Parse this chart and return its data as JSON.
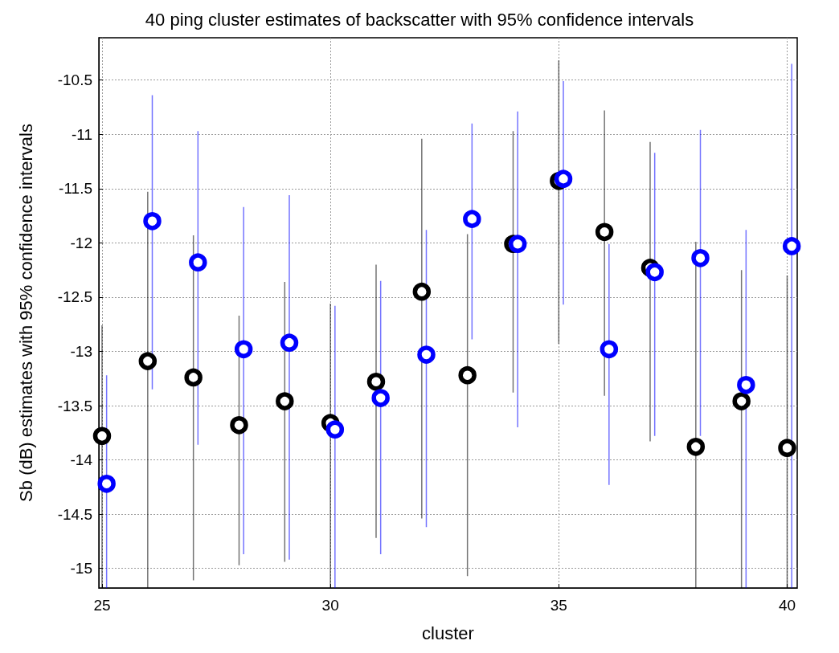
{
  "chart_data": {
    "type": "scatter",
    "title": "40 ping cluster estimates of backscatter with 95% confidence intervals",
    "xlabel": "cluster",
    "ylabel": "Sb (dB) estimates with 95% confidence intervals",
    "xlim": [
      24.93,
      40.22
    ],
    "xticks": [
      25,
      30,
      35,
      40
    ],
    "ylim": [
      -15.18,
      -10.11
    ],
    "yticks": [
      -15,
      -14.5,
      -14,
      -13.5,
      -13,
      -12.5,
      -12,
      -11.5,
      -11,
      -10.5
    ],
    "grid": true,
    "marker": "circle",
    "legend": false,
    "series": [
      {
        "color": "#000000",
        "x": [
          25,
          26,
          27,
          28,
          29,
          30,
          31,
          32,
          33,
          34,
          35,
          36,
          37,
          38,
          39,
          40
        ],
        "values": [
          -13.78,
          -13.09,
          -13.24,
          -13.68,
          -13.46,
          -13.66,
          -13.28,
          -12.45,
          -13.22,
          -12.01,
          -11.43,
          -11.9,
          -12.23,
          -13.88,
          -13.46,
          -13.89
        ],
        "errors": [
          [
            -15.18,
            -12.76
          ],
          [
            -15.18,
            -11.53
          ],
          [
            -15.11,
            -11.93
          ],
          [
            -14.97,
            -12.67
          ],
          [
            -14.94,
            -12.36
          ],
          [
            -15.18,
            -12.56
          ],
          [
            -14.72,
            -12.2
          ],
          [
            -14.54,
            -11.04
          ],
          [
            -15.07,
            -11.92
          ],
          [
            -13.38,
            -10.97
          ],
          [
            -12.93,
            -10.32
          ],
          [
            -13.41,
            -10.78
          ],
          [
            -13.83,
            -11.07
          ],
          [
            -15.18,
            -11.99
          ],
          [
            -15.18,
            -12.25
          ],
          [
            -15.18,
            -12.3
          ]
        ]
      },
      {
        "color": "#0000ff",
        "x": [
          25.1,
          26.1,
          27.1,
          28.1,
          29.1,
          30.1,
          31.1,
          32.1,
          33.1,
          34.1,
          35.1,
          36.1,
          37.1,
          38.1,
          39.1,
          40.1
        ],
        "values": [
          -14.22,
          -11.8,
          -12.18,
          -12.98,
          -12.92,
          -13.72,
          -13.43,
          -13.03,
          -11.78,
          -12.01,
          -11.41,
          -12.98,
          -12.27,
          -12.14,
          -13.31,
          -12.03
        ],
        "errors": [
          [
            -15.18,
            -13.22
          ],
          [
            -13.35,
            -10.64
          ],
          [
            -13.86,
            -10.97
          ],
          [
            -14.87,
            -11.67
          ],
          [
            -14.92,
            -11.56
          ],
          [
            -15.18,
            -12.58
          ],
          [
            -14.87,
            -12.35
          ],
          [
            -14.62,
            -11.88
          ],
          [
            -12.89,
            -10.9
          ],
          [
            -13.7,
            -10.79
          ],
          [
            -12.57,
            -10.51
          ],
          [
            -14.23,
            -12.01
          ],
          [
            -13.78,
            -11.17
          ],
          [
            -13.78,
            -10.96
          ],
          [
            -15.18,
            -11.88
          ],
          [
            -15.18,
            -10.35
          ]
        ]
      }
    ]
  }
}
